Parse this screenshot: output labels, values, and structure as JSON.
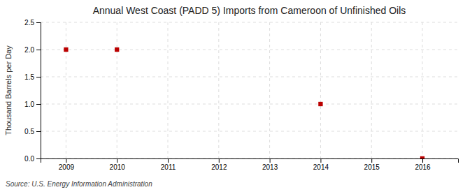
{
  "chart_data": {
    "type": "scatter",
    "title": "Annual West Coast (PADD 5) Imports from Cameroon of Unfinished Oils",
    "ylabel": "Thousand Barrels per Day",
    "annotations": [
      "Source: U.S. Energy Information Administration"
    ],
    "x": [
      2009,
      2010,
      2014,
      2016
    ],
    "values": [
      2.0,
      2.0,
      1.0,
      0.0
    ],
    "color": "#bb0000",
    "marker": "square",
    "xlim": [
      2008.5,
      2016.7
    ],
    "ylim": [
      0.0,
      2.5
    ],
    "xticks": [
      2009,
      2010,
      2011,
      2012,
      2013,
      2014,
      2015,
      2016
    ],
    "yticks": [
      {
        "value": 0.0,
        "label": "0.0"
      },
      0.5,
      {
        "value": 1.0,
        "label": "1.0"
      },
      1.5,
      {
        "value": 2.0,
        "label": "2.0"
      },
      2.5
    ],
    "grid": true
  }
}
